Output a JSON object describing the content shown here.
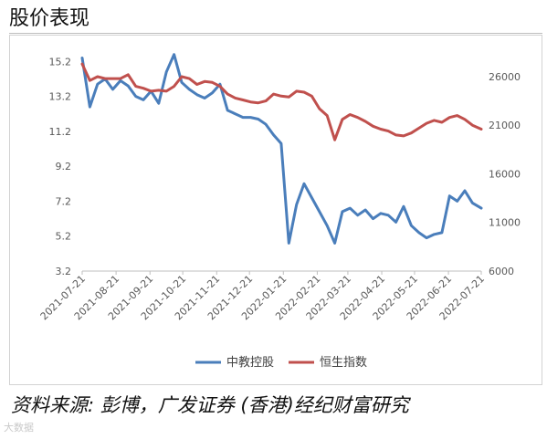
{
  "header": {
    "title": "股价表现"
  },
  "footer": {
    "source": "资料来源: 彭博，广发证券 (香港)经纪财富研究",
    "watermark": "大数据"
  },
  "chart_data": {
    "type": "line",
    "x": [
      "2021-07-21",
      "2021-07-28",
      "2021-08-04",
      "2021-08-11",
      "2021-08-18",
      "2021-08-25",
      "2021-09-01",
      "2021-09-08",
      "2021-09-15",
      "2021-09-22",
      "2021-09-29",
      "2021-10-06",
      "2021-10-13",
      "2021-10-20",
      "2021-10-27",
      "2021-11-03",
      "2021-11-10",
      "2021-11-17",
      "2021-11-24",
      "2021-12-01",
      "2021-12-08",
      "2021-12-15",
      "2021-12-22",
      "2021-12-29",
      "2022-01-05",
      "2022-01-12",
      "2022-01-19",
      "2022-01-26",
      "2022-02-02",
      "2022-02-09",
      "2022-02-16",
      "2022-02-23",
      "2022-03-02",
      "2022-03-09",
      "2022-03-16",
      "2022-03-23",
      "2022-03-30",
      "2022-04-06",
      "2022-04-13",
      "2022-04-20",
      "2022-04-27",
      "2022-05-04",
      "2022-05-11",
      "2022-05-18",
      "2022-05-25",
      "2022-06-01",
      "2022-06-08",
      "2022-06-15",
      "2022-06-22",
      "2022-06-29",
      "2022-07-06",
      "2022-07-13",
      "2022-07-21"
    ],
    "x_tick_labels": [
      "2021-07-21",
      "2021-08-21",
      "2021-09-21",
      "2021-10-21",
      "2021-11-21",
      "2021-12-21",
      "2022-01-21",
      "2022-02-21",
      "2022-03-21",
      "2022-04-21",
      "2022-05-21",
      "2022-06-21",
      "2022-07-21"
    ],
    "series": [
      {
        "name": "中教控股",
        "axis": "left",
        "color": "#4a7ebb",
        "values": [
          15.4,
          12.6,
          13.9,
          14.2,
          13.6,
          14.1,
          13.8,
          13.2,
          13.0,
          13.5,
          12.8,
          14.6,
          15.6,
          14.0,
          13.6,
          13.3,
          13.1,
          13.4,
          13.9,
          12.4,
          12.2,
          12.0,
          12.0,
          11.9,
          11.6,
          11.0,
          10.5,
          4.8,
          7.0,
          8.2,
          7.4,
          6.6,
          5.8,
          4.8,
          6.6,
          6.8,
          6.4,
          6.7,
          6.2,
          6.5,
          6.4,
          6.0,
          6.9,
          5.8,
          5.4,
          5.1,
          5.3,
          5.4,
          7.5,
          7.2,
          7.8,
          7.1,
          6.8
        ]
      },
      {
        "name": "恒生指数",
        "axis": "right",
        "color": "#c0504d",
        "values": [
          27300,
          25600,
          26000,
          25800,
          25800,
          25800,
          26200,
          25000,
          24800,
          24500,
          24600,
          24500,
          25000,
          26000,
          25800,
          25200,
          25500,
          25400,
          25000,
          24200,
          23800,
          23600,
          23400,
          23300,
          23500,
          24200,
          24000,
          23900,
          24500,
          24400,
          24000,
          22700,
          22000,
          19500,
          21600,
          22100,
          21800,
          21400,
          20900,
          20600,
          20400,
          20000,
          19900,
          20200,
          20700,
          21200,
          21500,
          21300,
          21800,
          22000,
          21600,
          21000,
          20600
        ]
      }
    ],
    "y_left": {
      "ticks": [
        "3.2",
        "5.2",
        "7.2",
        "9.2",
        "11.2",
        "13.2",
        "15.2"
      ],
      "range": [
        3.2,
        16.0
      ]
    },
    "y_right": {
      "ticks": [
        "6000",
        "11000",
        "16000",
        "21000",
        "26000"
      ],
      "range": [
        6000,
        29000
      ]
    },
    "grid": false,
    "legend": {
      "placement": "bottom",
      "items": [
        "中教控股",
        "恒生指数"
      ]
    }
  }
}
